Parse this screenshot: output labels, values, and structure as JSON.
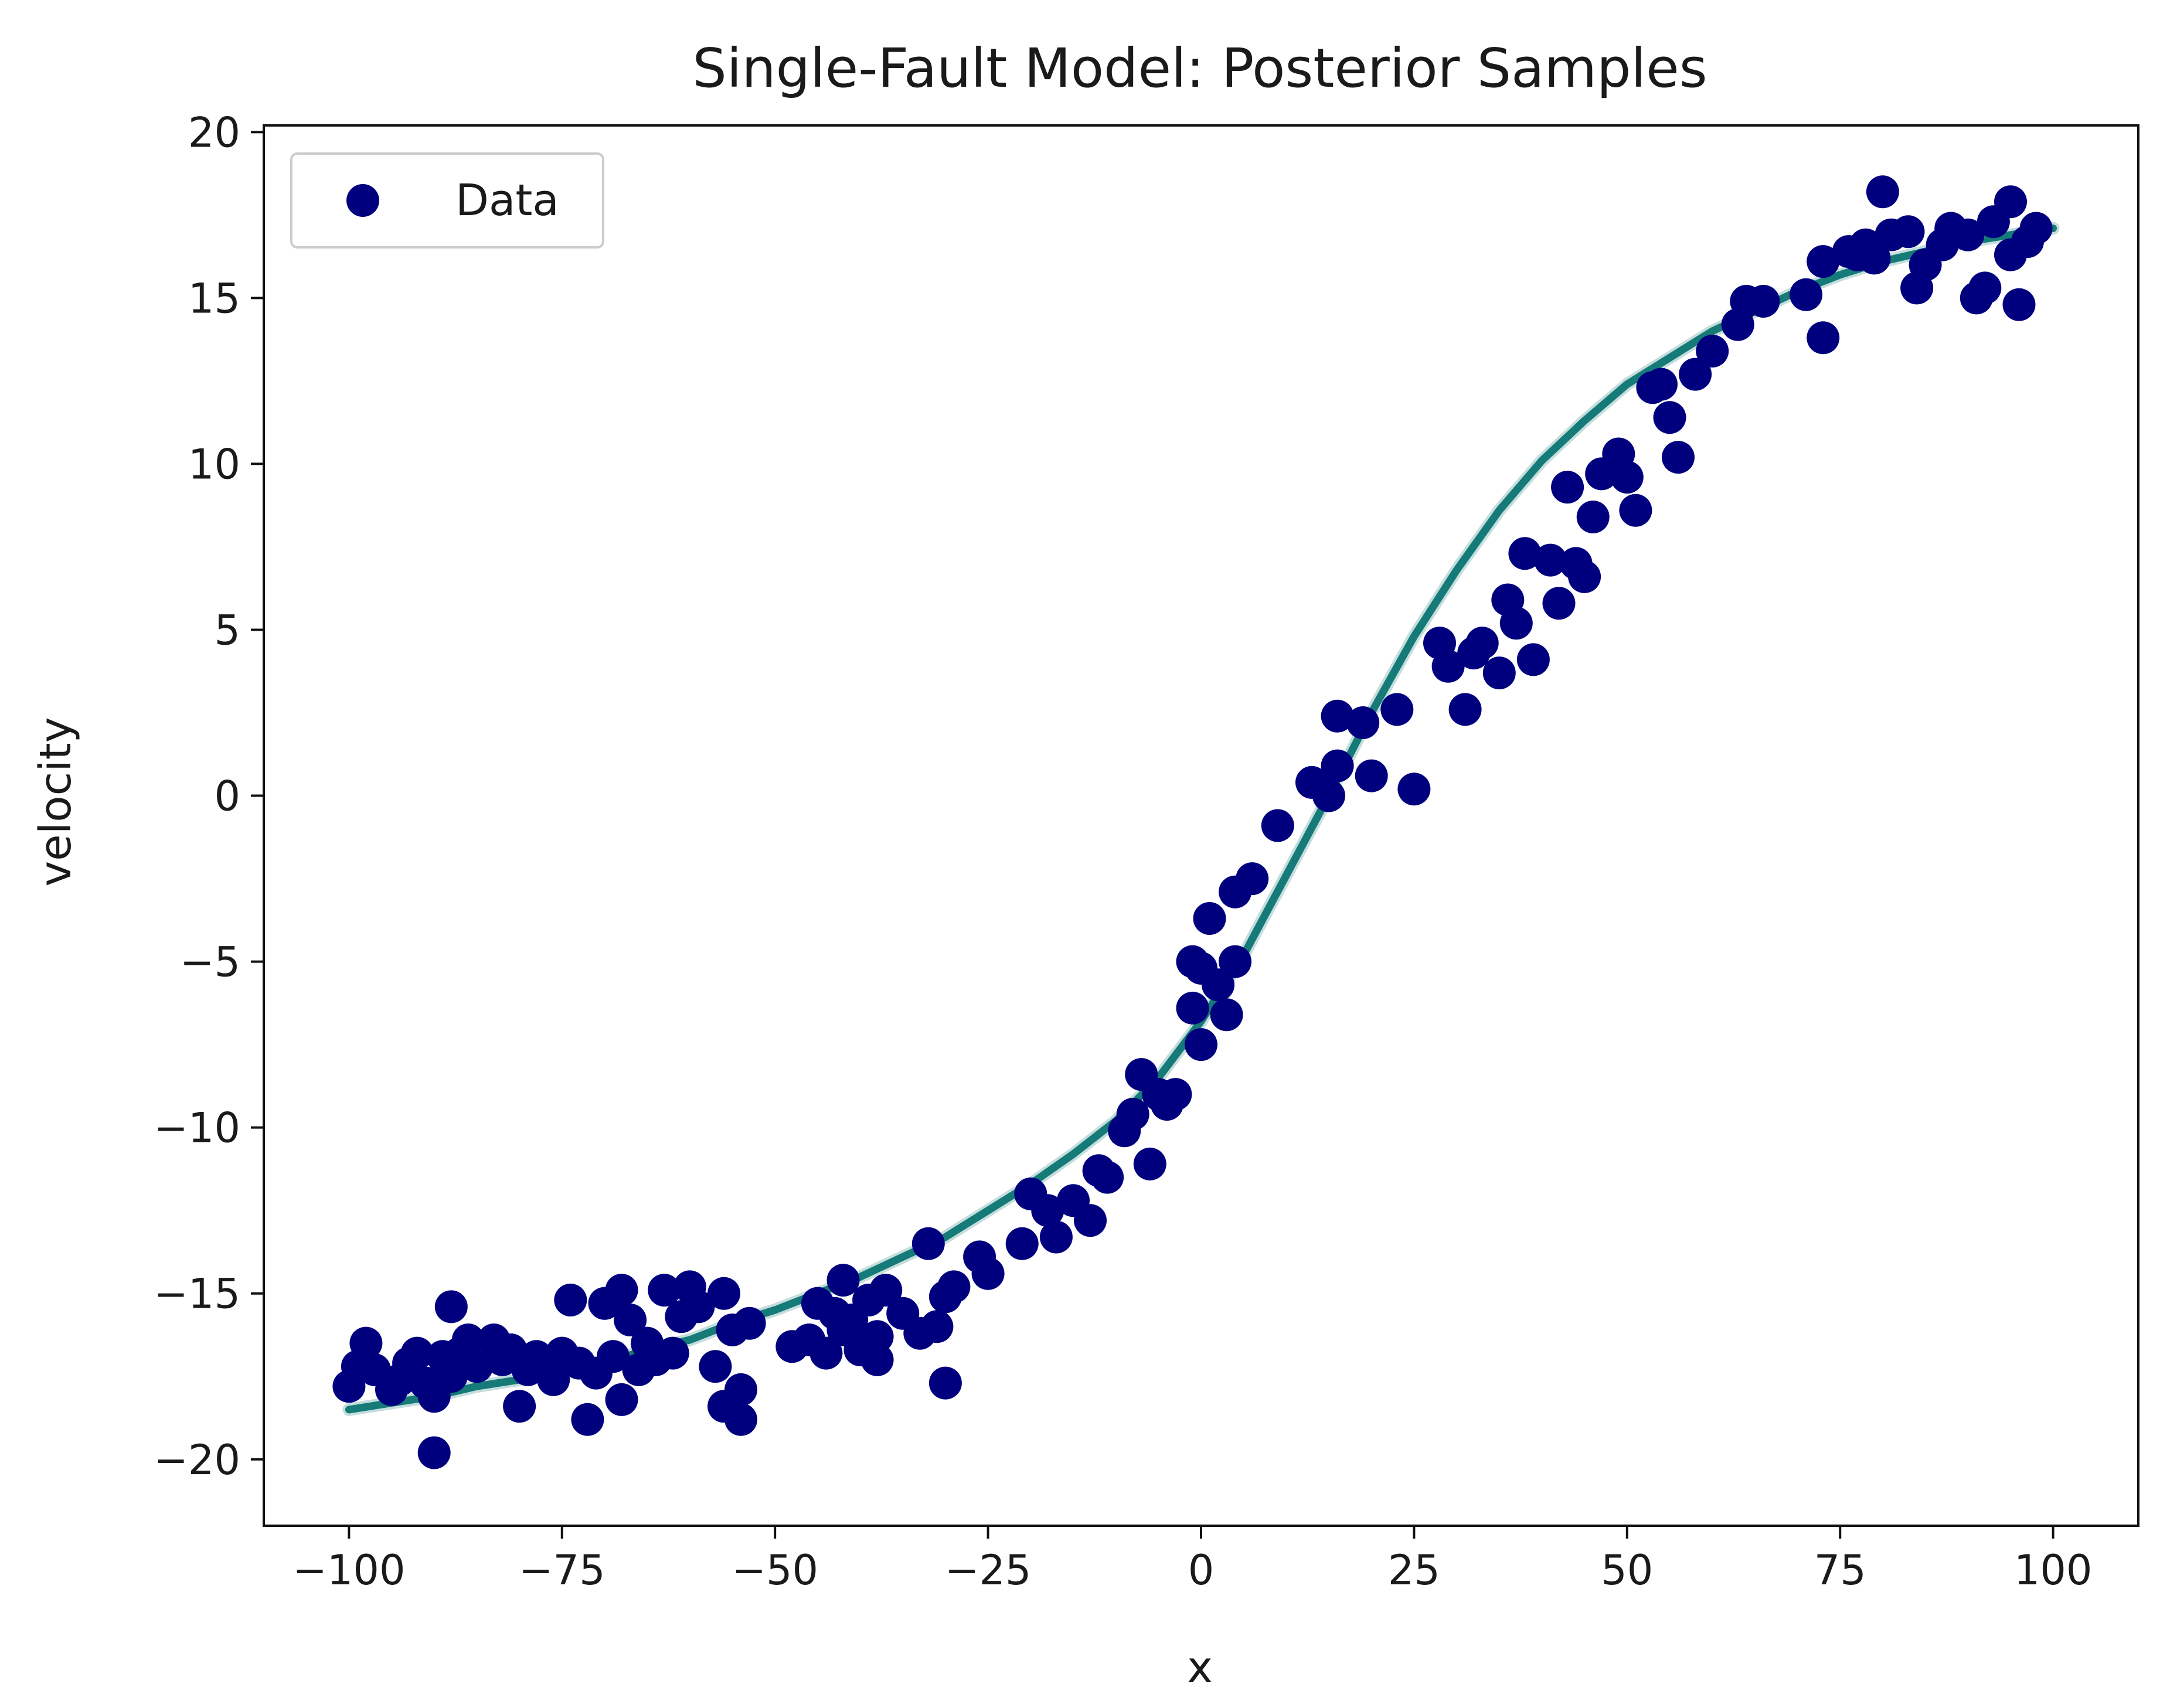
{
  "chart_data": {
    "type": "scatter",
    "title": "Single-Fault Model: Posterior Samples",
    "xlabel": "x",
    "ylabel": "velocity",
    "xlim": [
      -110,
      110
    ],
    "ylim": [
      -22,
      20.2
    ],
    "xticks": [
      -100,
      -75,
      -50,
      -25,
      0,
      25,
      50,
      75,
      100
    ],
    "yticks": [
      -20,
      -15,
      -10,
      -5,
      0,
      5,
      10,
      15,
      20
    ],
    "grid": false,
    "legend": {
      "position": "top-left",
      "entries": [
        {
          "label": "Data",
          "marker": "circle",
          "color": "#00007f"
        }
      ]
    },
    "series": [
      {
        "name": "Data",
        "kind": "scatter",
        "color": "#00007f",
        "points": [
          [
            -100,
            -17.8
          ],
          [
            -99,
            -17.2
          ],
          [
            -98,
            -16.5
          ],
          [
            -97,
            -17.3
          ],
          [
            -95,
            -17.9
          ],
          [
            -94,
            -17.6
          ],
          [
            -93,
            -17.1
          ],
          [
            -92,
            -16.8
          ],
          [
            -91,
            -17.7
          ],
          [
            -90,
            -18.1
          ],
          [
            -90,
            -19.8
          ],
          [
            -89,
            -16.9
          ],
          [
            -88,
            -15.4
          ],
          [
            -88,
            -17.5
          ],
          [
            -87,
            -16.8
          ],
          [
            -86,
            -16.4
          ],
          [
            -85,
            -17.2
          ],
          [
            -83,
            -16.4
          ],
          [
            -82,
            -17.0
          ],
          [
            -81,
            -16.7
          ],
          [
            -80,
            -18.4
          ],
          [
            -79,
            -17.3
          ],
          [
            -78,
            -16.9
          ],
          [
            -76,
            -17.6
          ],
          [
            -75,
            -16.8
          ],
          [
            -74,
            -15.2
          ],
          [
            -73,
            -17.1
          ],
          [
            -72,
            -18.8
          ],
          [
            -71,
            -17.4
          ],
          [
            -70,
            -15.3
          ],
          [
            -69,
            -16.9
          ],
          [
            -68,
            -14.9
          ],
          [
            -68,
            -18.2
          ],
          [
            -67,
            -15.8
          ],
          [
            -66,
            -17.3
          ],
          [
            -65,
            -16.5
          ],
          [
            -64,
            -17.0
          ],
          [
            -63,
            -14.9
          ],
          [
            -62,
            -16.8
          ],
          [
            -61,
            -15.7
          ],
          [
            -60,
            -14.8
          ],
          [
            -59,
            -15.4
          ],
          [
            -57,
            -17.2
          ],
          [
            -56,
            -18.4
          ],
          [
            -56,
            -15.0
          ],
          [
            -55,
            -16.1
          ],
          [
            -54,
            -17.9
          ],
          [
            -54,
            -18.8
          ],
          [
            -53,
            -15.9
          ],
          [
            -48,
            -16.6
          ],
          [
            -46,
            -16.4
          ],
          [
            -45,
            -15.3
          ],
          [
            -44,
            -16.8
          ],
          [
            -43,
            -15.6
          ],
          [
            -42,
            -16.1
          ],
          [
            -42,
            -14.6
          ],
          [
            -41,
            -15.8
          ],
          [
            -40,
            -16.7
          ],
          [
            -39,
            -15.2
          ],
          [
            -38,
            -17.0
          ],
          [
            -38,
            -16.3
          ],
          [
            -37,
            -14.9
          ],
          [
            -35,
            -15.6
          ],
          [
            -33,
            -16.2
          ],
          [
            -32,
            -13.5
          ],
          [
            -31,
            -16.0
          ],
          [
            -30,
            -17.7
          ],
          [
            -30,
            -15.1
          ],
          [
            -29,
            -14.8
          ],
          [
            -26,
            -13.9
          ],
          [
            -25,
            -14.4
          ],
          [
            -21,
            -13.5
          ],
          [
            -20,
            -12.0
          ],
          [
            -18,
            -12.5
          ],
          [
            -17,
            -13.3
          ],
          [
            -15,
            -12.2
          ],
          [
            -13,
            -12.8
          ],
          [
            -12,
            -11.3
          ],
          [
            -11,
            -11.5
          ],
          [
            -9,
            -10.1
          ],
          [
            -8,
            -9.6
          ],
          [
            -7,
            -8.4
          ],
          [
            -6,
            -11.1
          ],
          [
            -5,
            -9.0
          ],
          [
            -4,
            -9.3
          ],
          [
            -3,
            -9.0
          ],
          [
            -1,
            -6.4
          ],
          [
            -1,
            -5.0
          ],
          [
            0,
            -5.2
          ],
          [
            0,
            -7.5
          ],
          [
            1,
            -3.7
          ],
          [
            2,
            -5.7
          ],
          [
            3,
            -6.6
          ],
          [
            4,
            -5.0
          ],
          [
            4,
            -2.9
          ],
          [
            6,
            -2.5
          ],
          [
            9,
            -0.9
          ],
          [
            13,
            0.4
          ],
          [
            15,
            0.0
          ],
          [
            16,
            0.9
          ],
          [
            16,
            2.4
          ],
          [
            19,
            2.2
          ],
          [
            20,
            0.6
          ],
          [
            23,
            2.6
          ],
          [
            25,
            0.2
          ],
          [
            28,
            4.6
          ],
          [
            29,
            3.9
          ],
          [
            31,
            2.6
          ],
          [
            32,
            4.3
          ],
          [
            33,
            4.6
          ],
          [
            35,
            3.7
          ],
          [
            36,
            5.9
          ],
          [
            37,
            5.2
          ],
          [
            38,
            7.3
          ],
          [
            39,
            4.1
          ],
          [
            41,
            7.1
          ],
          [
            42,
            5.8
          ],
          [
            43,
            9.3
          ],
          [
            44,
            7.0
          ],
          [
            45,
            6.6
          ],
          [
            46,
            8.4
          ],
          [
            47,
            9.7
          ],
          [
            49,
            10.3
          ],
          [
            50,
            9.6
          ],
          [
            51,
            8.6
          ],
          [
            53,
            12.3
          ],
          [
            54,
            12.4
          ],
          [
            55,
            11.4
          ],
          [
            56,
            10.2
          ],
          [
            58,
            12.7
          ],
          [
            60,
            13.4
          ],
          [
            63,
            14.2
          ],
          [
            64,
            14.9
          ],
          [
            66,
            14.9
          ],
          [
            71,
            15.1
          ],
          [
            73,
            16.1
          ],
          [
            73,
            13.8
          ],
          [
            76,
            16.4
          ],
          [
            77,
            16.3
          ],
          [
            78,
            16.6
          ],
          [
            79,
            16.2
          ],
          [
            80,
            18.2
          ],
          [
            81,
            16.9
          ],
          [
            83,
            17.0
          ],
          [
            84,
            15.3
          ],
          [
            85,
            16.0
          ],
          [
            87,
            16.6
          ],
          [
            88,
            17.1
          ],
          [
            90,
            16.9
          ],
          [
            91,
            15.0
          ],
          [
            92,
            15.3
          ],
          [
            93,
            17.3
          ],
          [
            95,
            17.9
          ],
          [
            95,
            16.3
          ],
          [
            96,
            14.8
          ],
          [
            97,
            16.7
          ],
          [
            98,
            17.1
          ]
        ]
      },
      {
        "kind": "line",
        "color": "#157a78",
        "points": [
          [
            -100,
            -18.5
          ],
          [
            -95,
            -18.3
          ],
          [
            -90,
            -18.1
          ],
          [
            -85,
            -17.8
          ],
          [
            -80,
            -17.6
          ],
          [
            -75,
            -17.3
          ],
          [
            -70,
            -17.1
          ],
          [
            -65,
            -16.7
          ],
          [
            -60,
            -16.4
          ],
          [
            -55,
            -15.9
          ],
          [
            -50,
            -15.5
          ],
          [
            -45,
            -15.0
          ],
          [
            -40,
            -14.5
          ],
          [
            -35,
            -13.9
          ],
          [
            -30,
            -13.3
          ],
          [
            -25,
            -12.5
          ],
          [
            -20,
            -11.7
          ],
          [
            -15,
            -10.8
          ],
          [
            -10,
            -9.8
          ],
          [
            -5,
            -8.5
          ],
          [
            0,
            -6.8
          ],
          [
            5,
            -4.8
          ],
          [
            10,
            -2.4
          ],
          [
            15,
            0.0
          ],
          [
            20,
            2.5
          ],
          [
            25,
            4.8
          ],
          [
            30,
            6.8
          ],
          [
            35,
            8.6
          ],
          [
            40,
            10.1
          ],
          [
            45,
            11.3
          ],
          [
            50,
            12.4
          ],
          [
            55,
            13.2
          ],
          [
            60,
            14.0
          ],
          [
            65,
            14.6
          ],
          [
            70,
            15.2
          ],
          [
            75,
            15.7
          ],
          [
            80,
            16.1
          ],
          [
            85,
            16.4
          ],
          [
            90,
            16.7
          ],
          [
            95,
            16.9
          ],
          [
            100,
            17.1
          ]
        ]
      }
    ]
  }
}
